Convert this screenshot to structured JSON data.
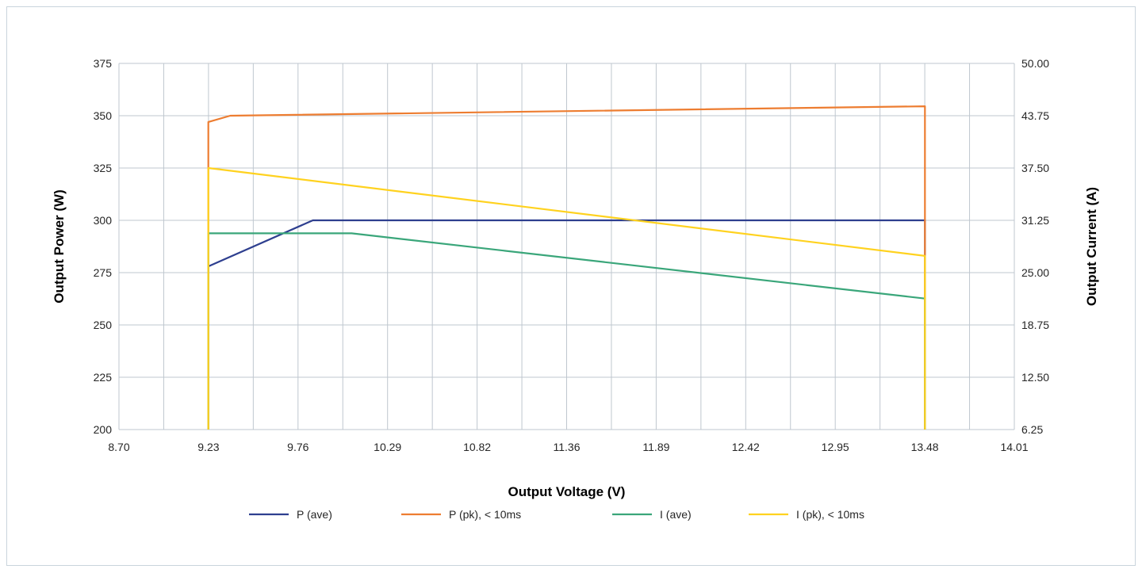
{
  "chart_data": {
    "type": "line",
    "title": "",
    "xlabel": "Output Voltage (V)",
    "ylabel": "Output Power (W)",
    "y2label": "Output Current (A)",
    "xlim": [
      8.7,
      14.01
    ],
    "ylim": [
      200,
      375
    ],
    "y2lim": [
      6.25,
      50.0
    ],
    "x_ticks": [
      "8.70",
      "9.23",
      "9.76",
      "10.29",
      "10.82",
      "11.36",
      "11.89",
      "12.42",
      "12.95",
      "13.48",
      "14.01"
    ],
    "y_ticks": [
      "200",
      "225",
      "250",
      "275",
      "300",
      "325",
      "350",
      "375"
    ],
    "y2_ticks": [
      "6.25",
      "12.50",
      "18.75",
      "25.00",
      "31.25",
      "37.50",
      "43.75",
      "50.00"
    ],
    "grid": true,
    "legend_position": "bottom",
    "series": [
      {
        "name": "P (ave)",
        "axis": "left",
        "color": "#2e3f8f",
        "x": [
          9.23,
          9.23,
          9.85,
          13.48,
          13.48
        ],
        "y": [
          200,
          278,
          300,
          300,
          200
        ]
      },
      {
        "name": "P (pk), < 10ms",
        "axis": "left",
        "color": "#ed7d31",
        "x": [
          9.23,
          9.23,
          9.36,
          13.48,
          13.48,
          13.48
        ],
        "y": [
          200,
          347,
          350,
          354.5,
          350,
          200
        ]
      },
      {
        "name": "I (ave)",
        "axis": "right",
        "color": "#3aa67a",
        "x": [
          9.23,
          9.23,
          10.08,
          13.48,
          13.48
        ],
        "y": [
          6.25,
          29.7,
          29.7,
          21.9,
          6.25
        ]
      },
      {
        "name": "I (pk), < 10ms",
        "axis": "right",
        "color": "#ffd21f",
        "x": [
          9.23,
          9.23,
          13.48,
          13.48
        ],
        "y": [
          6.25,
          37.5,
          27.0,
          6.25
        ]
      }
    ]
  }
}
